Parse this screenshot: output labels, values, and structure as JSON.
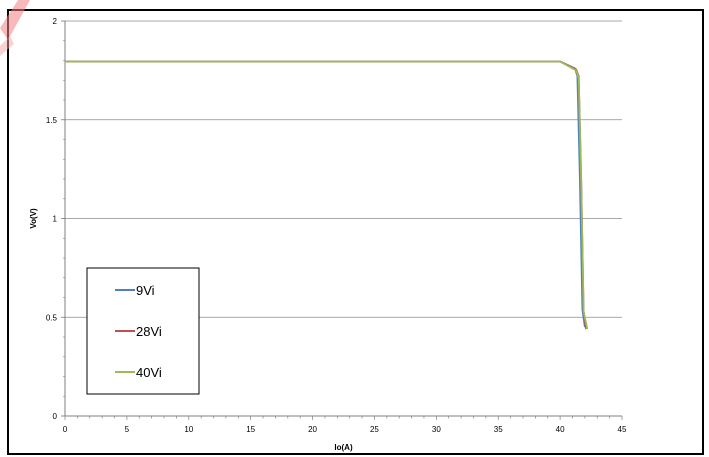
{
  "chart_data": {
    "type": "line",
    "xlabel": "Io(A)",
    "ylabel": "Vo(V)",
    "xlim": [
      0,
      45
    ],
    "ylim": [
      0,
      2
    ],
    "xticks": [
      0,
      5,
      10,
      15,
      20,
      25,
      30,
      35,
      40,
      45
    ],
    "yticks": [
      0,
      0.5,
      1,
      1.5,
      2
    ],
    "ytick_labels": [
      "0",
      "0.5",
      "1",
      "1.5",
      "2"
    ],
    "grid": "horizontal",
    "legend": "bottom-left",
    "series": [
      {
        "name": "9Vi",
        "color": "#4F81BD",
        "x": [
          0,
          40,
          41.2,
          41.4,
          41.6,
          41.8,
          42.0
        ],
        "y": [
          1.795,
          1.795,
          1.76,
          1.72,
          1.2,
          0.54,
          0.45
        ]
      },
      {
        "name": "28Vi",
        "color": "#C0504D",
        "x": [
          0,
          40,
          41.3,
          41.5,
          41.7,
          41.9,
          42.1
        ],
        "y": [
          1.795,
          1.795,
          1.755,
          1.72,
          1.2,
          0.53,
          0.44
        ]
      },
      {
        "name": "40Vi",
        "color": "#9BBB59",
        "x": [
          0,
          40,
          41.3,
          41.5,
          41.7,
          41.9,
          42.2
        ],
        "y": [
          1.795,
          1.795,
          1.75,
          1.71,
          1.18,
          0.53,
          0.44
        ]
      }
    ]
  }
}
